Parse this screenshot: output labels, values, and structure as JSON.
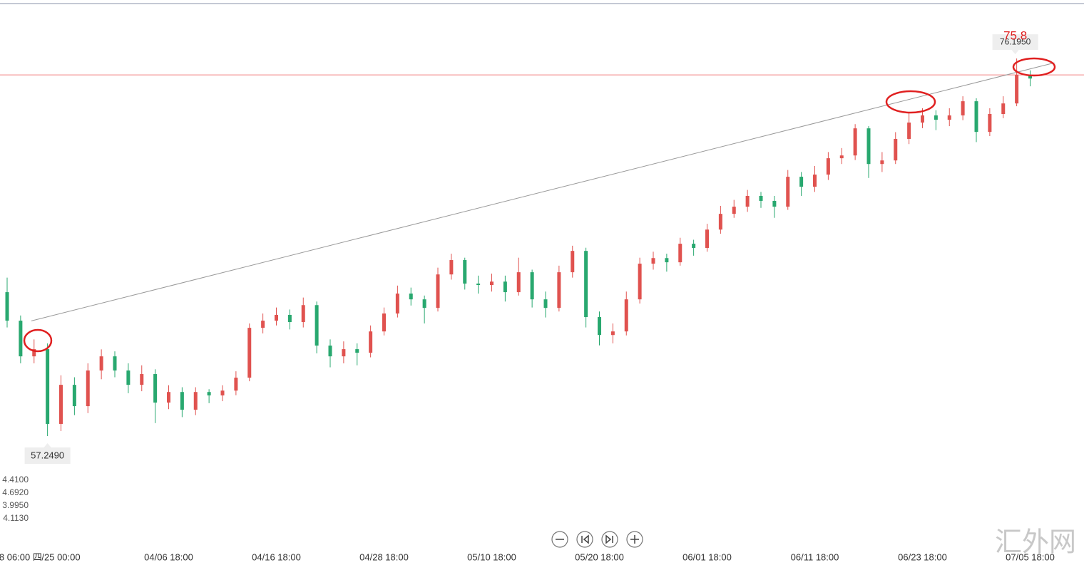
{
  "chart_data": {
    "type": "candlestick",
    "categories": [
      null,
      "8 06:00 四",
      null,
      null,
      "/25 00:00",
      null,
      null,
      null,
      null,
      null,
      null,
      null,
      "04/06 18:00",
      null,
      null,
      null,
      null,
      null,
      null,
      null,
      "04/16 18:00",
      null,
      null,
      null,
      null,
      null,
      null,
      null,
      "04/28 18:00",
      null,
      null,
      null,
      null,
      null,
      null,
      null,
      "05/10 18:00",
      null,
      null,
      null,
      null,
      null,
      null,
      null,
      "05/20 18:00",
      null,
      null,
      null,
      null,
      null,
      null,
      null,
      "06/01 18:00",
      null,
      null,
      null,
      null,
      null,
      null,
      null,
      "06/11 18:00",
      null,
      null,
      null,
      null,
      null,
      null,
      null,
      "06/23 18:00",
      null,
      null,
      null,
      null,
      null,
      null,
      null,
      "07/05 18:00"
    ],
    "open": [
      64.47,
      63.04,
      61.25,
      61.61,
      57.86,
      59.82,
      58.75,
      60.54,
      61.25,
      60.54,
      59.82,
      60.36,
      58.93,
      59.46,
      58.57,
      59.46,
      59.29,
      59.53,
      60.18,
      62.68,
      63.04,
      63.33,
      62.97,
      63.82,
      61.79,
      61.25,
      61.61,
      61.43,
      62.5,
      63.4,
      64.4,
      64.11,
      63.68,
      65.36,
      66.08,
      64.9,
      64.83,
      65.0,
      64.47,
      65.47,
      64.11,
      63.68,
      65.47,
      66.54,
      63.22,
      62.32,
      62.5,
      64.11,
      65.9,
      66.18,
      65.97,
      66.9,
      66.69,
      67.61,
      68.4,
      68.76,
      69.3,
      69.05,
      68.76,
      70.26,
      69.76,
      70.37,
      71.19,
      71.33,
      72.69,
      70.9,
      71.08,
      72.16,
      72.98,
      73.34,
      73.12,
      73.34,
      74.05,
      72.51,
      73.41,
      73.94,
      75.37
    ],
    "high": [
      65.2,
      63.3,
      62.1,
      61.9,
      60.3,
      60.2,
      60.9,
      61.6,
      61.5,
      60.9,
      60.8,
      60.6,
      59.8,
      59.7,
      59.7,
      59.6,
      59.8,
      60.5,
      62.9,
      63.4,
      63.7,
      63.6,
      64.2,
      64.0,
      62.1,
      62.0,
      61.9,
      62.8,
      63.7,
      64.8,
      64.7,
      64.3,
      65.7,
      66.4,
      66.2,
      65.3,
      65.4,
      65.3,
      66.2,
      65.6,
      64.5,
      65.8,
      66.8,
      66.7,
      63.5,
      62.9,
      64.5,
      66.2,
      66.5,
      66.4,
      67.2,
      67.1,
      67.9,
      68.8,
      69.1,
      69.6,
      69.5,
      69.3,
      70.6,
      70.5,
      70.8,
      71.5,
      71.7,
      72.9,
      72.8,
      71.5,
      72.5,
      73.5,
      73.7,
      73.6,
      73.7,
      74.3,
      74.2,
      73.7,
      74.3,
      76.195,
      75.6
    ],
    "low": [
      62.7,
      60.9,
      60.9,
      57.249,
      57.5,
      58.3,
      58.4,
      60.1,
      60.2,
      59.4,
      59.5,
      57.9,
      58.6,
      58.2,
      58.3,
      58.9,
      59.0,
      59.3,
      60.0,
      62.4,
      62.8,
      62.6,
      62.7,
      61.4,
      60.7,
      60.9,
      60.8,
      61.2,
      62.3,
      63.2,
      63.8,
      62.9,
      63.5,
      65.1,
      64.6,
      64.4,
      64.5,
      64.0,
      64.3,
      63.7,
      63.2,
      63.5,
      65.2,
      62.7,
      61.8,
      61.9,
      62.3,
      63.9,
      65.6,
      65.5,
      65.8,
      66.3,
      66.5,
      67.4,
      68.2,
      68.5,
      68.7,
      68.2,
      68.6,
      69.3,
      69.5,
      70.1,
      70.9,
      71.1,
      70.2,
      70.5,
      70.9,
      71.9,
      72.7,
      72.6,
      72.8,
      73.1,
      72.0,
      72.3,
      73.2,
      73.8,
      74.8
    ],
    "close": [
      63.04,
      61.25,
      61.61,
      57.86,
      59.82,
      58.75,
      60.54,
      61.25,
      60.54,
      59.82,
      60.36,
      58.93,
      59.46,
      58.57,
      59.46,
      59.29,
      59.53,
      60.18,
      62.68,
      63.04,
      63.33,
      62.97,
      63.82,
      61.79,
      61.25,
      61.61,
      61.43,
      62.5,
      63.4,
      64.4,
      64.11,
      63.68,
      65.36,
      66.08,
      64.9,
      64.83,
      65.0,
      64.47,
      65.47,
      64.11,
      63.68,
      65.47,
      66.54,
      63.22,
      62.32,
      62.5,
      64.11,
      65.9,
      66.18,
      65.97,
      66.9,
      66.69,
      67.61,
      68.4,
      68.76,
      69.3,
      69.05,
      68.76,
      70.26,
      69.76,
      70.37,
      71.19,
      71.33,
      72.69,
      70.9,
      71.08,
      72.16,
      72.98,
      73.34,
      73.12,
      73.34,
      74.05,
      72.51,
      73.41,
      73.94,
      75.37,
      75.19
    ],
    "up_color": "#e0524f",
    "down_color": "#28a86f",
    "xlim": [
      -0.53,
      80.0
    ],
    "ylim": [
      50.78,
      79.13
    ],
    "reference_line": {
      "value": 75.37,
      "color": "#f08080"
    },
    "trend_line": {
      "x": [
        1.8,
        77.8
      ],
      "y": [
        63.03,
        75.98
      ],
      "color": "#999999"
    },
    "low_label": {
      "index": 3,
      "value": 57.249,
      "text": "57.2490"
    },
    "high_label": {
      "index": 75,
      "value": 76.195,
      "text": "76.1950"
    },
    "annotation": "75.8",
    "side_values": [
      "4.4100",
      "4.6920",
      "3.9950",
      "4.1130"
    ],
    "watermark": "汇外网"
  }
}
